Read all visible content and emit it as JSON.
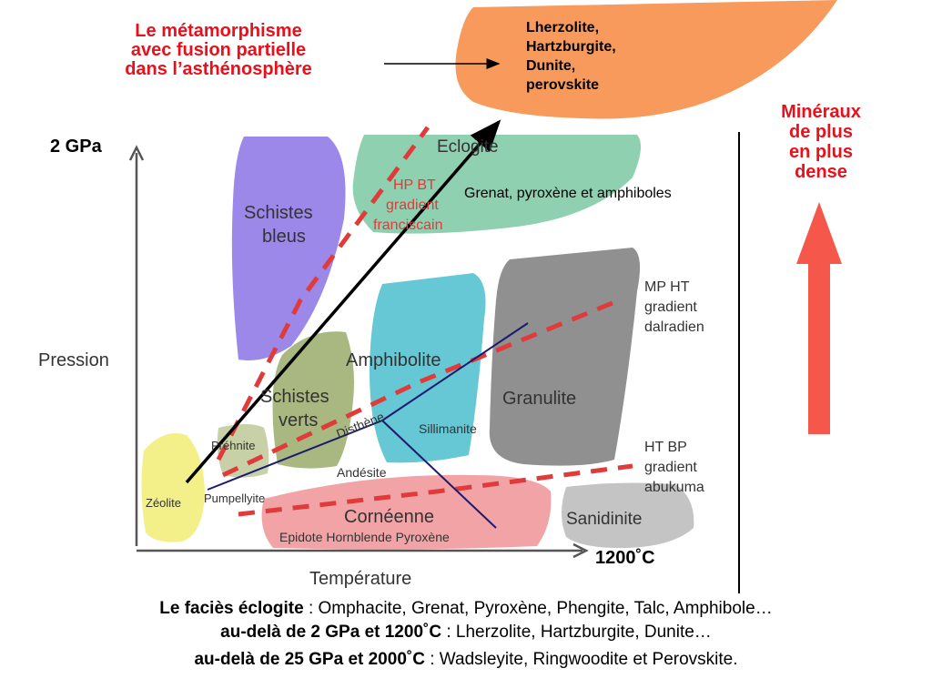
{
  "title": {
    "line1": "Le métamorphisme",
    "line2": "avec fusion partielle",
    "line3": "dans l’asthénosphère"
  },
  "orange_blob": {
    "line1": "Lherzolite,",
    "line2": "Hartzburgite,",
    "line3": "Dunite,",
    "line4": "perovskite"
  },
  "dense_label": {
    "line1": "Minéraux",
    "line2": "de plus",
    "line3": "en plus",
    "line4": "dense"
  },
  "pressure_marker": "2 GPa",
  "temperature_marker": "1200˚C",
  "eclogite_note": "Grenat, pyroxène et amphiboles",
  "diagram": {
    "y_axis_label": "Pression",
    "x_axis_label": "Température",
    "facies": {
      "eclogite": "Eclogite",
      "schistes_bleus_1": "Schistes",
      "schistes_bleus_2": "bleus",
      "amphibolite": "Amphibolite",
      "granulite": "Granulite",
      "schistes_verts_1": "Schistes",
      "schistes_verts_2": "verts",
      "prehnite": "Préhnite",
      "zeolite": "Zéolite",
      "pumpellyite": "Pumpellyite",
      "andesite": "Andésite",
      "corneenne": "Cornéenne",
      "corneenne_sub": "Epidote  Hornblende Pyroxène",
      "sanidinite": "Sanidinite",
      "disthene": "Disthène",
      "sillimanite": "Sillimanite"
    },
    "gradients": {
      "hpbt_1": "HP BT",
      "hpbt_2": "gradient",
      "hpbt_3": "franciscain",
      "mpht_1": "MP HT",
      "mpht_2": "gradient",
      "mpht_3": "dalradien",
      "htbp_1": "HT BP",
      "htbp_2": "gradient",
      "htbp_3": "abukuma"
    }
  },
  "captions": {
    "line1_bold": "Le faciès éclogite",
    "line1_rest": " : Omphacite, Grenat, Pyroxène, Phengite, Talc, Amphibole…",
    "line2_bold": "au-delà de 2 GPa et 1200˚C",
    "line2_rest": " : Lherzolite, Hartzburgite, Dunite…",
    "line3_bold": "au-delà de 25 GPa et 2000˚C",
    "line3_rest": " : Wadsleyite, Ringwoodite et Perovskite."
  },
  "colors": {
    "title_red": "#e8111b",
    "orange_blob": "#f89a5c",
    "dense_arrow": "#f5584a",
    "eclogite": "#8fd0b0",
    "schistes_bleus": "#9b88e8",
    "amphibolite": "#66c8d4",
    "granulite": "#909090",
    "schistes_verts": "#a8b880",
    "zeolite": "#f3f08a",
    "corneenne": "#f2a3a6",
    "sanidinite": "#c4c4c4",
    "gradient_dash": "#e03b3b"
  }
}
